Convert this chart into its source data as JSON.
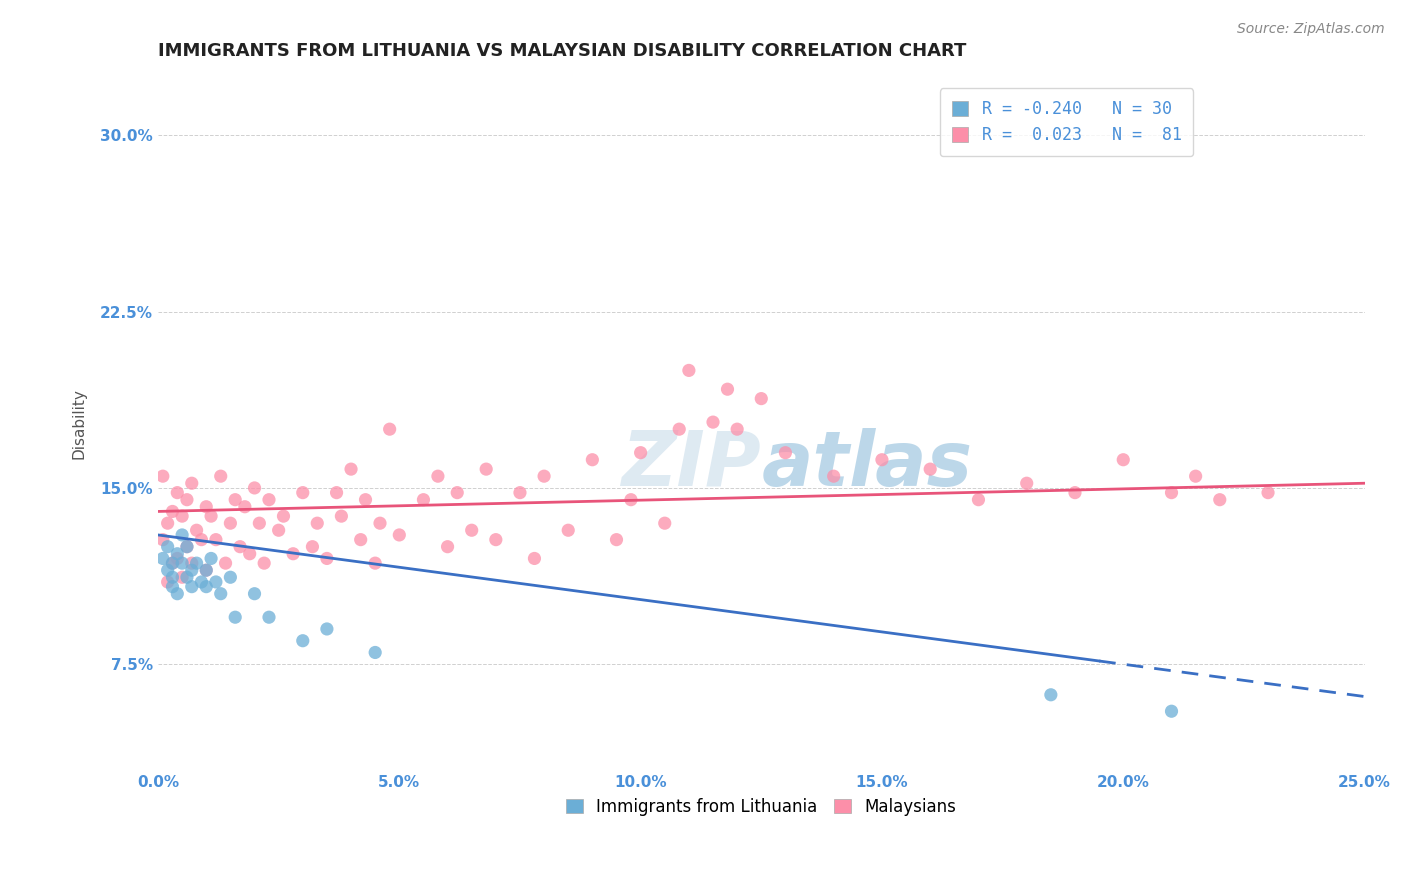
{
  "title": "IMMIGRANTS FROM LITHUANIA VS MALAYSIAN DISABILITY CORRELATION CHART",
  "source": "Source: ZipAtlas.com",
  "ylabel": "Disability",
  "xlim": [
    0.0,
    0.25
  ],
  "ylim": [
    0.03,
    0.325
  ],
  "yticks": [
    0.075,
    0.15,
    0.225,
    0.3
  ],
  "ytick_labels": [
    "7.5%",
    "15.0%",
    "22.5%",
    "30.0%"
  ],
  "xticks": [
    0.0,
    0.05,
    0.1,
    0.15,
    0.2,
    0.25
  ],
  "xtick_labels": [
    "0.0%",
    "5.0%",
    "10.0%",
    "15.0%",
    "20.0%",
    "25.0%"
  ],
  "legend_r1": "R = -0.240",
  "legend_n1": "N = 30",
  "legend_r2": "R =  0.023",
  "legend_n2": "N =  81",
  "color_blue": "#6baed6",
  "color_pink": "#fc8fa9",
  "color_trend_blue": "#3a6fc4",
  "color_trend_pink": "#e8547a",
  "color_title": "#222222",
  "color_axis_label": "#4a90d9",
  "color_grid": "#d0d0d0",
  "background_color": "#ffffff",
  "lithuania_x": [
    0.001,
    0.002,
    0.002,
    0.003,
    0.003,
    0.003,
    0.004,
    0.004,
    0.005,
    0.005,
    0.006,
    0.006,
    0.007,
    0.007,
    0.008,
    0.009,
    0.01,
    0.01,
    0.011,
    0.012,
    0.013,
    0.015,
    0.016,
    0.02,
    0.023,
    0.03,
    0.035,
    0.045,
    0.185,
    0.21
  ],
  "lithuania_y": [
    0.12,
    0.115,
    0.125,
    0.118,
    0.112,
    0.108,
    0.122,
    0.105,
    0.13,
    0.118,
    0.112,
    0.125,
    0.115,
    0.108,
    0.118,
    0.11,
    0.115,
    0.108,
    0.12,
    0.11,
    0.105,
    0.112,
    0.095,
    0.105,
    0.095,
    0.085,
    0.09,
    0.08,
    0.062,
    0.055
  ],
  "malaysian_x": [
    0.001,
    0.001,
    0.002,
    0.002,
    0.003,
    0.003,
    0.004,
    0.004,
    0.005,
    0.005,
    0.006,
    0.006,
    0.007,
    0.007,
    0.008,
    0.009,
    0.01,
    0.01,
    0.011,
    0.012,
    0.013,
    0.014,
    0.015,
    0.016,
    0.017,
    0.018,
    0.019,
    0.02,
    0.021,
    0.022,
    0.023,
    0.025,
    0.026,
    0.028,
    0.03,
    0.032,
    0.033,
    0.035,
    0.037,
    0.038,
    0.04,
    0.042,
    0.043,
    0.045,
    0.046,
    0.048,
    0.05,
    0.055,
    0.058,
    0.06,
    0.062,
    0.065,
    0.068,
    0.07,
    0.075,
    0.078,
    0.08,
    0.085,
    0.09,
    0.095,
    0.098,
    0.1,
    0.105,
    0.108,
    0.11,
    0.115,
    0.118,
    0.12,
    0.125,
    0.13,
    0.14,
    0.15,
    0.16,
    0.17,
    0.18,
    0.19,
    0.2,
    0.21,
    0.215,
    0.22,
    0.23
  ],
  "malaysian_y": [
    0.128,
    0.155,
    0.135,
    0.11,
    0.14,
    0.118,
    0.148,
    0.12,
    0.138,
    0.112,
    0.145,
    0.125,
    0.152,
    0.118,
    0.132,
    0.128,
    0.142,
    0.115,
    0.138,
    0.128,
    0.155,
    0.118,
    0.135,
    0.145,
    0.125,
    0.142,
    0.122,
    0.15,
    0.135,
    0.118,
    0.145,
    0.132,
    0.138,
    0.122,
    0.148,
    0.125,
    0.135,
    0.12,
    0.148,
    0.138,
    0.158,
    0.128,
    0.145,
    0.118,
    0.135,
    0.175,
    0.13,
    0.145,
    0.155,
    0.125,
    0.148,
    0.132,
    0.158,
    0.128,
    0.148,
    0.12,
    0.155,
    0.132,
    0.162,
    0.128,
    0.145,
    0.165,
    0.135,
    0.175,
    0.2,
    0.178,
    0.192,
    0.175,
    0.188,
    0.165,
    0.155,
    0.162,
    0.158,
    0.145,
    0.152,
    0.148,
    0.162,
    0.148,
    0.155,
    0.145,
    0.148
  ],
  "watermark_color": "#ccdded",
  "title_fontsize": 13,
  "axis_label_fontsize": 11,
  "tick_fontsize": 11,
  "legend_fontsize": 12,
  "source_fontsize": 10
}
